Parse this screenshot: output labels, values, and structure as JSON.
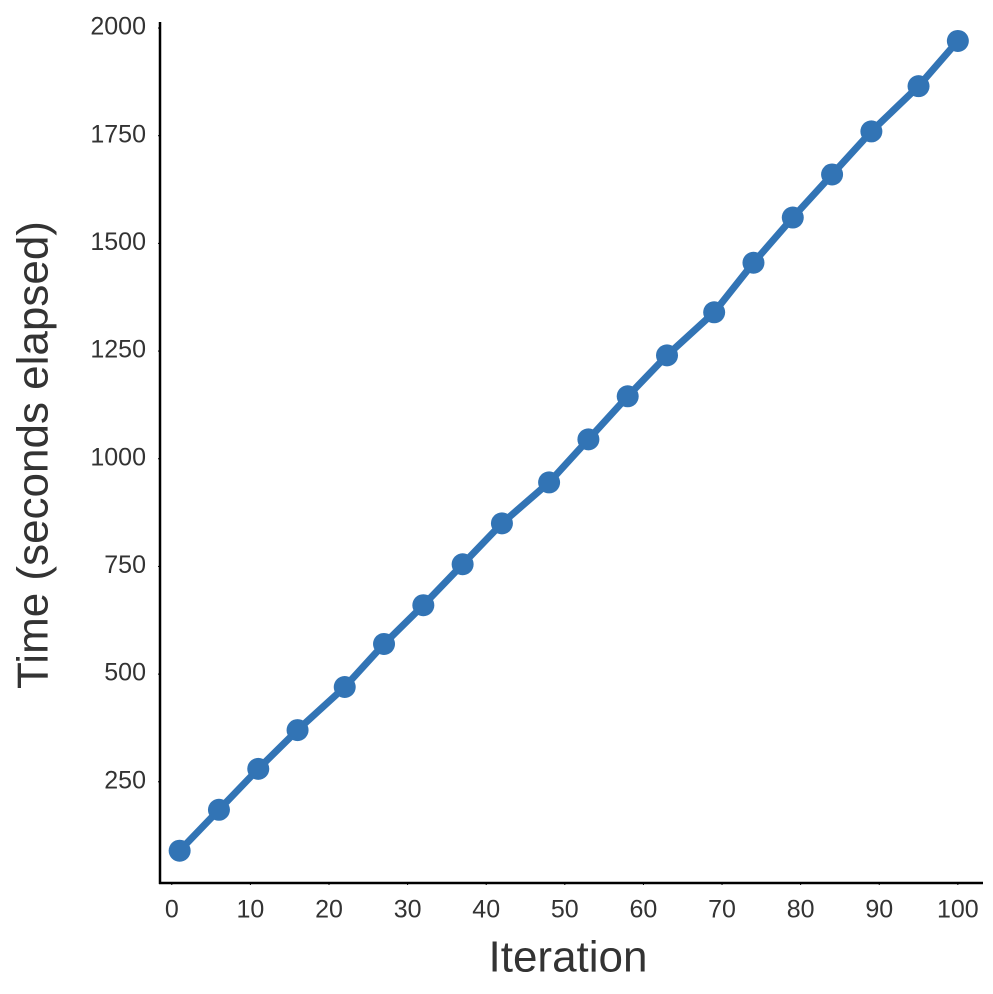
{
  "chart_data": {
    "type": "line",
    "x_label": "Iteration",
    "y_label": "Time (seconds elapsed)",
    "x": [
      1,
      6,
      11,
      16,
      22,
      27,
      32,
      37,
      42,
      48,
      53,
      58,
      63,
      69,
      74,
      79,
      84,
      89,
      95,
      100
    ],
    "series": [
      {
        "name": "time",
        "color": "#3274b5",
        "values": [
          90,
          185,
          280,
          370,
          470,
          570,
          660,
          755,
          850,
          945,
          1045,
          1145,
          1240,
          1340,
          1455,
          1560,
          1660,
          1760,
          1865,
          1970
        ]
      }
    ],
    "xlim": [
      -1.5,
      103.2
    ],
    "ylim": [
      15,
      2014
    ],
    "xticks": [
      0,
      10,
      20,
      30,
      40,
      50,
      60,
      70,
      80,
      90,
      100
    ],
    "yticks": [
      250,
      500,
      750,
      1000,
      1250,
      1500,
      1750,
      2000
    ]
  }
}
